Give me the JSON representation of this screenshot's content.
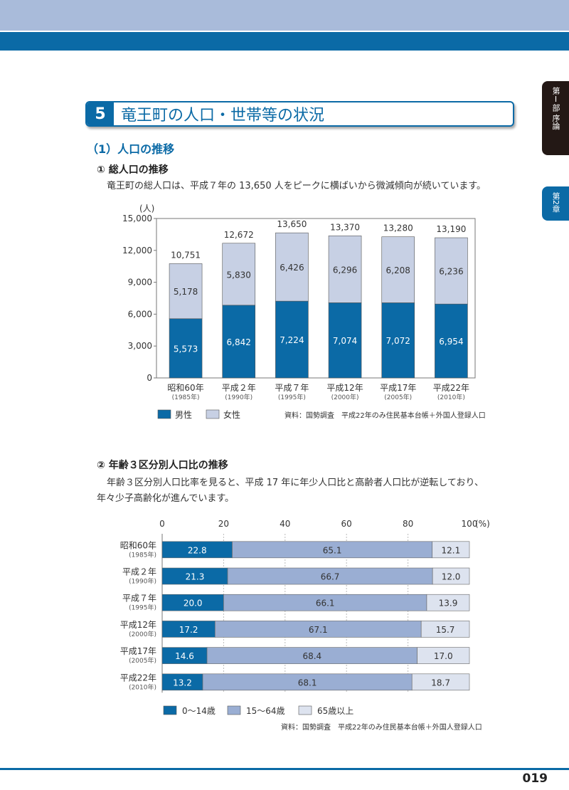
{
  "header": {
    "tab_part": "第Ⅰ部 序論",
    "tab_chapter": "第2章"
  },
  "section": {
    "number": "5",
    "title": "竜王町の人口・世帯等の状況"
  },
  "subsection": "（1）人口の推移",
  "item1": {
    "heading": "① 総人口の推移",
    "text": "竜王町の総人口は、平成７年の 13,650 人をピークに横ばいから微減傾向が続いています。"
  },
  "item2": {
    "heading": "② 年齢３区分別人口比の推移",
    "text1": "年齢３区分別人口比率を見ると、平成 17 年に年少人口比と高齢者人口比が逆転しており、",
    "text2": "年々少子高齢化が進んでいます。"
  },
  "page_number": "019",
  "chart_data": [
    {
      "type": "bar",
      "stacked": true,
      "ylabel": "(人)",
      "ylim": [
        0,
        15000
      ],
      "yticks": [
        "0",
        "3,000",
        "6,000",
        "9,000",
        "12,000",
        "15,000"
      ],
      "categories": [
        "昭和60年",
        "平成２年",
        "平成７年",
        "平成12年",
        "平成17年",
        "平成22年"
      ],
      "subcategories": [
        "(1985年)",
        "(1990年)",
        "(1995年)",
        "(2000年)",
        "(2005年)",
        "(2010年)"
      ],
      "series": [
        {
          "name": "男性",
          "color": "#0b6aa6",
          "values": [
            5573,
            6842,
            7224,
            7074,
            7072,
            6954
          ],
          "labels": [
            "5,573",
            "6,842",
            "7,224",
            "7,074",
            "7,072",
            "6,954"
          ]
        },
        {
          "name": "女性",
          "color": "#c7d0e4",
          "values": [
            5178,
            5830,
            6426,
            6296,
            6208,
            6236
          ],
          "labels": [
            "5,178",
            "5,830",
            "6,426",
            "6,296",
            "6,208",
            "6,236"
          ]
        }
      ],
      "totals": [
        "10,751",
        "12,672",
        "13,650",
        "13,370",
        "13,280",
        "13,190"
      ],
      "source": "資料：国勢調査　平成22年のみ住民基本台帳＋外国人登録人口",
      "legend": "bottom-left"
    },
    {
      "type": "bar",
      "orientation": "horizontal",
      "stacked": true,
      "xlim": [
        0,
        100
      ],
      "xticks": [
        "0",
        "20",
        "40",
        "60",
        "80",
        "100"
      ],
      "xunit": "(%)",
      "categories": [
        "昭和60年",
        "平成２年",
        "平成７年",
        "平成12年",
        "平成17年",
        "平成22年"
      ],
      "subcategories": [
        "(1985年)",
        "(1990年)",
        "(1995年)",
        "(2000年)",
        "(2005年)",
        "(2010年)"
      ],
      "series": [
        {
          "name": "0〜14歳",
          "color": "#0b6aa6",
          "values": [
            22.8,
            21.3,
            20.0,
            17.2,
            14.6,
            13.2
          ],
          "labels": [
            "22.8",
            "21.3",
            "20.0",
            "17.2",
            "14.6",
            "13.2"
          ]
        },
        {
          "name": "15〜64歳",
          "color": "#9aaed3",
          "values": [
            65.1,
            66.7,
            66.1,
            67.1,
            68.4,
            68.1
          ],
          "labels": [
            "65.1",
            "66.7",
            "66.1",
            "67.1",
            "68.4",
            "68.1"
          ]
        },
        {
          "name": "65歳以上",
          "color": "#dde3ef",
          "values": [
            12.1,
            12.0,
            13.9,
            15.7,
            17.0,
            18.7
          ],
          "labels": [
            "12.1",
            "12.0",
            "13.9",
            "15.7",
            "17.0",
            "18.7"
          ]
        }
      ],
      "source": "資料：国勢調査　平成22年のみ住民基本台帳＋外国人登録人口",
      "legend": "bottom-left"
    }
  ]
}
